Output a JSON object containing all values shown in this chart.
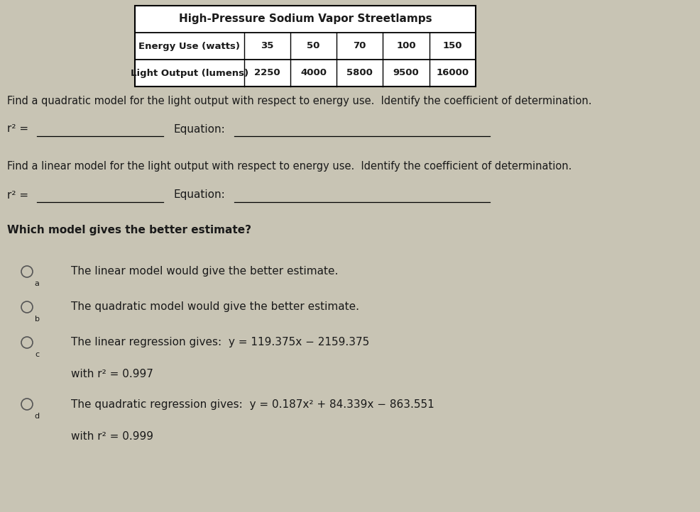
{
  "title": "High-Pressure Sodium Vapor Streetlamps",
  "table_headers": [
    "Energy Use (watts)",
    "35",
    "50",
    "70",
    "100",
    "150"
  ],
  "table_row2": [
    "Light Output (lumens)",
    "2250",
    "4000",
    "5800",
    "9500",
    "16000"
  ],
  "para1": "Find a quadratic model for the light output with respect to energy use.  Identify the coefficient of determination.",
  "label_r2_1": "r² =",
  "label_eq_1": "Equation:",
  "para2": "Find a linear model for the light output with respect to energy use.  Identify the coefficient of determination.",
  "label_r2_2": "r² =",
  "label_eq_2": "Equation:",
  "question": "Which model gives the better estimate?",
  "option_a_label": "a",
  "option_a_text": "The linear model would give the better estimate.",
  "option_b_label": "b",
  "option_b_text": "The quadratic model would give the better estimate.",
  "option_c_label": "c",
  "option_c_line1": "The linear regression gives:  y = 119.375x − 2159.375",
  "option_c_line2": "with r² = 0.997",
  "option_d_label": "d",
  "option_d_line1": "The quadratic regression gives:  y = 0.187x² + 84.339x − 863.551",
  "option_d_line2": "with r² = 0.999",
  "bg_color": "#c8c4b4",
  "text_color": "#1a1a1a",
  "figsize": [
    9.87,
    7.22
  ],
  "dpi": 100
}
